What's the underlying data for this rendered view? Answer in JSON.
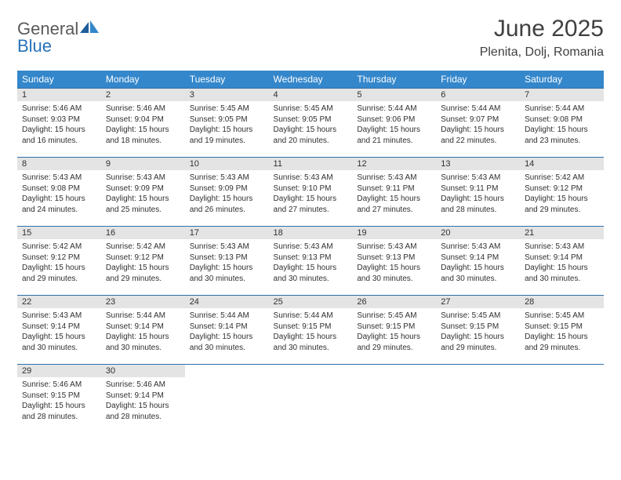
{
  "logo": {
    "part1": "General",
    "part2": "Blue"
  },
  "title": "June 2025",
  "location": "Plenita, Dolj, Romania",
  "colors": {
    "header_bg": "#3487cb",
    "header_text": "#ffffff",
    "daynum_bg": "#e4e4e4",
    "row_border": "#2f6fa8",
    "text": "#303030",
    "logo_gray": "#5a5a5a",
    "logo_blue": "#2772b8"
  },
  "weekdays": [
    "Sunday",
    "Monday",
    "Tuesday",
    "Wednesday",
    "Thursday",
    "Friday",
    "Saturday"
  ],
  "weeks": [
    [
      {
        "n": "1",
        "sr": "Sunrise: 5:46 AM",
        "ss": "Sunset: 9:03 PM",
        "d1": "Daylight: 15 hours",
        "d2": "and 16 minutes."
      },
      {
        "n": "2",
        "sr": "Sunrise: 5:46 AM",
        "ss": "Sunset: 9:04 PM",
        "d1": "Daylight: 15 hours",
        "d2": "and 18 minutes."
      },
      {
        "n": "3",
        "sr": "Sunrise: 5:45 AM",
        "ss": "Sunset: 9:05 PM",
        "d1": "Daylight: 15 hours",
        "d2": "and 19 minutes."
      },
      {
        "n": "4",
        "sr": "Sunrise: 5:45 AM",
        "ss": "Sunset: 9:05 PM",
        "d1": "Daylight: 15 hours",
        "d2": "and 20 minutes."
      },
      {
        "n": "5",
        "sr": "Sunrise: 5:44 AM",
        "ss": "Sunset: 9:06 PM",
        "d1": "Daylight: 15 hours",
        "d2": "and 21 minutes."
      },
      {
        "n": "6",
        "sr": "Sunrise: 5:44 AM",
        "ss": "Sunset: 9:07 PM",
        "d1": "Daylight: 15 hours",
        "d2": "and 22 minutes."
      },
      {
        "n": "7",
        "sr": "Sunrise: 5:44 AM",
        "ss": "Sunset: 9:08 PM",
        "d1": "Daylight: 15 hours",
        "d2": "and 23 minutes."
      }
    ],
    [
      {
        "n": "8",
        "sr": "Sunrise: 5:43 AM",
        "ss": "Sunset: 9:08 PM",
        "d1": "Daylight: 15 hours",
        "d2": "and 24 minutes."
      },
      {
        "n": "9",
        "sr": "Sunrise: 5:43 AM",
        "ss": "Sunset: 9:09 PM",
        "d1": "Daylight: 15 hours",
        "d2": "and 25 minutes."
      },
      {
        "n": "10",
        "sr": "Sunrise: 5:43 AM",
        "ss": "Sunset: 9:09 PM",
        "d1": "Daylight: 15 hours",
        "d2": "and 26 minutes."
      },
      {
        "n": "11",
        "sr": "Sunrise: 5:43 AM",
        "ss": "Sunset: 9:10 PM",
        "d1": "Daylight: 15 hours",
        "d2": "and 27 minutes."
      },
      {
        "n": "12",
        "sr": "Sunrise: 5:43 AM",
        "ss": "Sunset: 9:11 PM",
        "d1": "Daylight: 15 hours",
        "d2": "and 27 minutes."
      },
      {
        "n": "13",
        "sr": "Sunrise: 5:43 AM",
        "ss": "Sunset: 9:11 PM",
        "d1": "Daylight: 15 hours",
        "d2": "and 28 minutes."
      },
      {
        "n": "14",
        "sr": "Sunrise: 5:42 AM",
        "ss": "Sunset: 9:12 PM",
        "d1": "Daylight: 15 hours",
        "d2": "and 29 minutes."
      }
    ],
    [
      {
        "n": "15",
        "sr": "Sunrise: 5:42 AM",
        "ss": "Sunset: 9:12 PM",
        "d1": "Daylight: 15 hours",
        "d2": "and 29 minutes."
      },
      {
        "n": "16",
        "sr": "Sunrise: 5:42 AM",
        "ss": "Sunset: 9:12 PM",
        "d1": "Daylight: 15 hours",
        "d2": "and 29 minutes."
      },
      {
        "n": "17",
        "sr": "Sunrise: 5:43 AM",
        "ss": "Sunset: 9:13 PM",
        "d1": "Daylight: 15 hours",
        "d2": "and 30 minutes."
      },
      {
        "n": "18",
        "sr": "Sunrise: 5:43 AM",
        "ss": "Sunset: 9:13 PM",
        "d1": "Daylight: 15 hours",
        "d2": "and 30 minutes."
      },
      {
        "n": "19",
        "sr": "Sunrise: 5:43 AM",
        "ss": "Sunset: 9:13 PM",
        "d1": "Daylight: 15 hours",
        "d2": "and 30 minutes."
      },
      {
        "n": "20",
        "sr": "Sunrise: 5:43 AM",
        "ss": "Sunset: 9:14 PM",
        "d1": "Daylight: 15 hours",
        "d2": "and 30 minutes."
      },
      {
        "n": "21",
        "sr": "Sunrise: 5:43 AM",
        "ss": "Sunset: 9:14 PM",
        "d1": "Daylight: 15 hours",
        "d2": "and 30 minutes."
      }
    ],
    [
      {
        "n": "22",
        "sr": "Sunrise: 5:43 AM",
        "ss": "Sunset: 9:14 PM",
        "d1": "Daylight: 15 hours",
        "d2": "and 30 minutes."
      },
      {
        "n": "23",
        "sr": "Sunrise: 5:44 AM",
        "ss": "Sunset: 9:14 PM",
        "d1": "Daylight: 15 hours",
        "d2": "and 30 minutes."
      },
      {
        "n": "24",
        "sr": "Sunrise: 5:44 AM",
        "ss": "Sunset: 9:14 PM",
        "d1": "Daylight: 15 hours",
        "d2": "and 30 minutes."
      },
      {
        "n": "25",
        "sr": "Sunrise: 5:44 AM",
        "ss": "Sunset: 9:15 PM",
        "d1": "Daylight: 15 hours",
        "d2": "and 30 minutes."
      },
      {
        "n": "26",
        "sr": "Sunrise: 5:45 AM",
        "ss": "Sunset: 9:15 PM",
        "d1": "Daylight: 15 hours",
        "d2": "and 29 minutes."
      },
      {
        "n": "27",
        "sr": "Sunrise: 5:45 AM",
        "ss": "Sunset: 9:15 PM",
        "d1": "Daylight: 15 hours",
        "d2": "and 29 minutes."
      },
      {
        "n": "28",
        "sr": "Sunrise: 5:45 AM",
        "ss": "Sunset: 9:15 PM",
        "d1": "Daylight: 15 hours",
        "d2": "and 29 minutes."
      }
    ],
    [
      {
        "n": "29",
        "sr": "Sunrise: 5:46 AM",
        "ss": "Sunset: 9:15 PM",
        "d1": "Daylight: 15 hours",
        "d2": "and 28 minutes."
      },
      {
        "n": "30",
        "sr": "Sunrise: 5:46 AM",
        "ss": "Sunset: 9:14 PM",
        "d1": "Daylight: 15 hours",
        "d2": "and 28 minutes."
      },
      null,
      null,
      null,
      null,
      null
    ]
  ]
}
